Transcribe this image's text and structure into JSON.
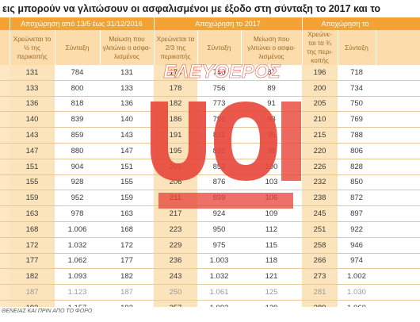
{
  "title": "εις μπορούν να γλιτώσουν οι ασφαλισμένοι με έξοδο στη σύνταξη το 2017 και το",
  "groups": [
    "",
    "Αποχώρηση από 13/5 έως 31/12/2016",
    "Αποχώρηση το 2017",
    "Αποχώρηση το"
  ],
  "subheaders": [
    "",
    "Χρεώνεται το ½ της περικοπής",
    "Σύνταξη",
    "Μείωση που γλιτώνει ο ασφα-λισμένος",
    "Χρεώνεται τα 2/3 της περικοπής",
    "Σύνταξη",
    "Μείωση που γλιτώνει ο ασφα-λισμένος",
    "Χρεώνε-ται τα ¾ της περι-κοπής",
    "Σύνταξη",
    ""
  ],
  "rows": [
    [
      "",
      "131",
      "784",
      "131",
      "174",
      "740",
      "87",
      "196",
      "718",
      ""
    ],
    [
      "",
      "133",
      "800",
      "133",
      "178",
      "756",
      "89",
      "200",
      "734",
      ""
    ],
    [
      "",
      "136",
      "818",
      "136",
      "182",
      "773",
      "91",
      "205",
      "750",
      ""
    ],
    [
      "",
      "140",
      "839",
      "140",
      "186",
      "792",
      "93",
      "210",
      "769",
      ""
    ],
    [
      "",
      "143",
      "859",
      "143",
      "191",
      "811",
      "95",
      "215",
      "788",
      ""
    ],
    [
      "",
      "147",
      "880",
      "147",
      "195",
      "831",
      "98",
      "220",
      "806",
      ""
    ],
    [
      "",
      "151",
      "904",
      "151",
      "201",
      "853",
      "100",
      "226",
      "828",
      ""
    ],
    [
      "",
      "155",
      "928",
      "155",
      "206",
      "876",
      "103",
      "232",
      "850",
      ""
    ],
    [
      "",
      "159",
      "952",
      "159",
      "211",
      "899",
      "106",
      "238",
      "872",
      ""
    ],
    [
      "",
      "163",
      "978",
      "163",
      "217",
      "924",
      "109",
      "245",
      "897",
      ""
    ],
    [
      "",
      "168",
      "1.006",
      "168",
      "223",
      "950",
      "112",
      "251",
      "922",
      ""
    ],
    [
      "",
      "172",
      "1.032",
      "172",
      "229",
      "975",
      "115",
      "258",
      "946",
      ""
    ],
    [
      "",
      "177",
      "1.062",
      "177",
      "236",
      "1.003",
      "118",
      "266",
      "974",
      ""
    ],
    [
      "",
      "182",
      "1.093",
      "182",
      "243",
      "1.032",
      "121",
      "273",
      "1.002",
      ""
    ],
    [
      "",
      "187",
      "1.123",
      "187",
      "250",
      "1.061",
      "125",
      "281",
      "1.030",
      ""
    ],
    [
      "",
      "193",
      "1.157",
      "193",
      "257",
      "1.093",
      "129",
      "289",
      "1.060",
      ""
    ]
  ],
  "watermark": "ΕΛΕΥΘΕΡΟΣ",
  "footnote": "ΘΕΝΕΙΑΣ ΚΑΙ ΠΡΙΝ ΑΠΟ ΤΟ ΦΟΡΟ",
  "colors": {
    "header_orange": "#f4a332",
    "subheader_peach": "#fbdcaa",
    "row_tint": "#fbe3bb",
    "watermark_red": "#e8473a"
  }
}
